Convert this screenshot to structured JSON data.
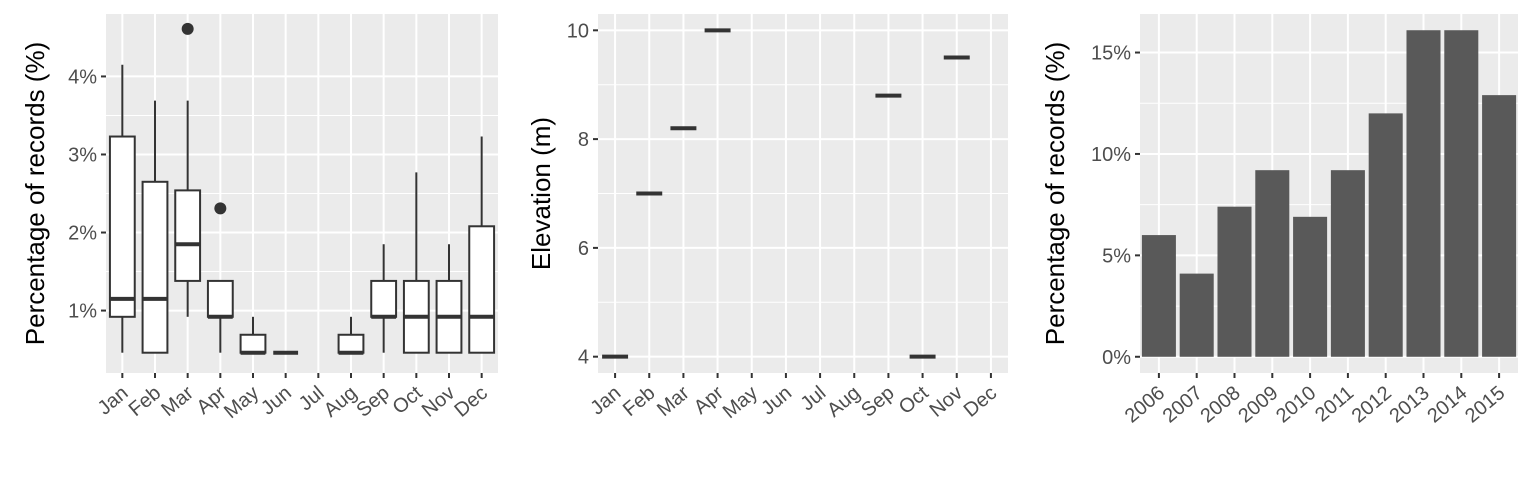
{
  "chart_data": [
    {
      "type": "box",
      "ylabel": "Percentage of records (%)",
      "xlabel": "",
      "categories": [
        "Jan",
        "Feb",
        "Mar",
        "Apr",
        "May",
        "Jun",
        "Jul",
        "Aug",
        "Sep",
        "Oct",
        "Nov",
        "Dec"
      ],
      "y_ticks": [
        1,
        2,
        3,
        4
      ],
      "y_tick_labels": [
        "1%",
        "2%",
        "3%",
        "4%"
      ],
      "ylim": [
        0.2,
        4.8
      ],
      "grid": true,
      "boxes": [
        {
          "cat": "Jan",
          "lower": 0.46,
          "q1": 0.92,
          "median": 1.15,
          "q3": 3.23,
          "upper": 4.15,
          "outliers": []
        },
        {
          "cat": "Feb",
          "lower": 0.46,
          "q1": 0.46,
          "median": 1.15,
          "q3": 2.65,
          "upper": 3.69,
          "outliers": []
        },
        {
          "cat": "Mar",
          "lower": 0.92,
          "q1": 1.38,
          "median": 1.85,
          "q3": 2.54,
          "upper": 3.69,
          "outliers": [
            4.61
          ]
        },
        {
          "cat": "Apr",
          "lower": 0.46,
          "q1": 0.92,
          "median": 0.92,
          "q3": 1.38,
          "upper": 1.38,
          "outliers": [
            2.31
          ]
        },
        {
          "cat": "May",
          "lower": 0.46,
          "q1": 0.46,
          "median": 0.46,
          "q3": 0.69,
          "upper": 0.92,
          "outliers": []
        },
        {
          "cat": "Jun",
          "lower": 0.46,
          "q1": 0.46,
          "median": 0.46,
          "q3": 0.46,
          "upper": 0.46,
          "outliers": []
        },
        {
          "cat": "Aug",
          "lower": 0.46,
          "q1": 0.46,
          "median": 0.46,
          "q3": 0.69,
          "upper": 0.92,
          "outliers": []
        },
        {
          "cat": "Sep",
          "lower": 0.46,
          "q1": 0.92,
          "median": 0.92,
          "q3": 1.38,
          "upper": 1.85,
          "outliers": []
        },
        {
          "cat": "Oct",
          "lower": 0.46,
          "q1": 0.46,
          "median": 0.92,
          "q3": 1.38,
          "upper": 2.77,
          "outliers": []
        },
        {
          "cat": "Nov",
          "lower": 0.46,
          "q1": 0.46,
          "median": 0.92,
          "q3": 1.38,
          "upper": 1.85,
          "outliers": []
        },
        {
          "cat": "Dec",
          "lower": 0.46,
          "q1": 0.46,
          "median": 0.92,
          "q3": 2.08,
          "upper": 3.23,
          "outliers": []
        }
      ]
    },
    {
      "type": "box",
      "ylabel": "Elevation (m)",
      "xlabel": "",
      "categories": [
        "Jan",
        "Feb",
        "Mar",
        "Apr",
        "May",
        "Jun",
        "Jul",
        "Aug",
        "Sep",
        "Oct",
        "Nov",
        "Dec"
      ],
      "y_ticks": [
        4,
        6,
        8,
        10
      ],
      "y_tick_labels": [
        "4",
        "6",
        "8",
        "10"
      ],
      "ylim": [
        3.7,
        10.3
      ],
      "grid": true,
      "boxes": [
        {
          "cat": "Jan",
          "lower": 4,
          "q1": 4,
          "median": 4,
          "q3": 4,
          "upper": 4,
          "outliers": []
        },
        {
          "cat": "Feb",
          "lower": 7,
          "q1": 7,
          "median": 7,
          "q3": 7,
          "upper": 7,
          "outliers": []
        },
        {
          "cat": "Mar",
          "lower": 8.2,
          "q1": 8.2,
          "median": 8.2,
          "q3": 8.2,
          "upper": 8.2,
          "outliers": []
        },
        {
          "cat": "Apr",
          "lower": 10,
          "q1": 10,
          "median": 10,
          "q3": 10,
          "upper": 10,
          "outliers": []
        },
        {
          "cat": "Sep",
          "lower": 8.8,
          "q1": 8.8,
          "median": 8.8,
          "q3": 8.8,
          "upper": 8.8,
          "outliers": []
        },
        {
          "cat": "Oct",
          "lower": 4,
          "q1": 4,
          "median": 4,
          "q3": 4,
          "upper": 4,
          "outliers": []
        },
        {
          "cat": "Nov",
          "lower": 9.5,
          "q1": 9.5,
          "median": 9.5,
          "q3": 9.5,
          "upper": 9.5,
          "outliers": []
        }
      ]
    },
    {
      "type": "bar",
      "ylabel": "Percentage of records (%)",
      "xlabel": "",
      "categories": [
        "2006",
        "2007",
        "2008",
        "2009",
        "2010",
        "2011",
        "2012",
        "2013",
        "2014",
        "2015"
      ],
      "values": [
        6.0,
        4.1,
        7.4,
        9.2,
        6.9,
        9.2,
        12.0,
        16.1,
        16.1,
        12.9
      ],
      "y_ticks": [
        0,
        5,
        10,
        15
      ],
      "y_tick_labels": [
        "0%",
        "5%",
        "10%",
        "15%"
      ],
      "ylim": [
        -0.8,
        16.9
      ],
      "grid": true,
      "bar_color": "#595959"
    }
  ]
}
